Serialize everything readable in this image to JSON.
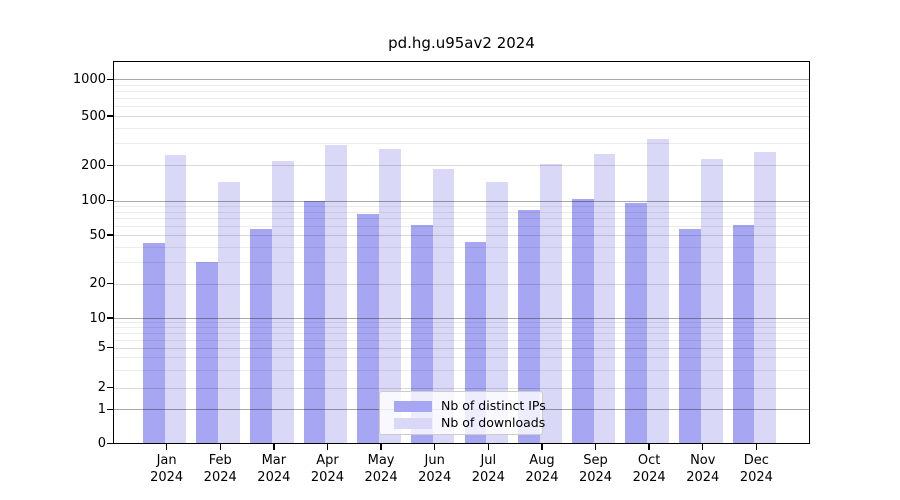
{
  "window": {
    "background": "#ffffff"
  },
  "chart_data": {
    "type": "bar",
    "title": "pd.hg.u95av2 2024",
    "categories": [
      "Jan",
      "Feb",
      "Mar",
      "Apr",
      "May",
      "Jun",
      "Jul",
      "Aug",
      "Sep",
      "Oct",
      "Nov",
      "Dec"
    ],
    "x_year_label": "2024",
    "series": [
      {
        "name": "Nb of distinct IPs",
        "color": "#a6a6f2",
        "values": [
          43,
          30,
          56,
          100,
          77,
          61,
          44,
          83,
          103,
          96,
          56,
          61
        ]
      },
      {
        "name": "Nb of downloads",
        "color": "#d9d9f7",
        "values": [
          243,
          145,
          215,
          292,
          268,
          187,
          145,
          204,
          248,
          323,
          226,
          255
        ]
      }
    ],
    "yscale": "symlog",
    "yticks": [
      0,
      1,
      2,
      5,
      10,
      20,
      50,
      100,
      200,
      500,
      1000
    ],
    "ylim": [
      0,
      1400
    ],
    "grid": "both-major-and-minor",
    "legend_position": "lower center inside plot",
    "axis_color": "#000000",
    "grid_major_color": "#aaaaaa",
    "grid_minor_color": "#e9e9e9"
  },
  "legend": {
    "items": [
      {
        "label": "Nb of distinct IPs",
        "color": "#a6a6f2"
      },
      {
        "label": "Nb of downloads",
        "color": "#d9d9f7"
      }
    ]
  }
}
